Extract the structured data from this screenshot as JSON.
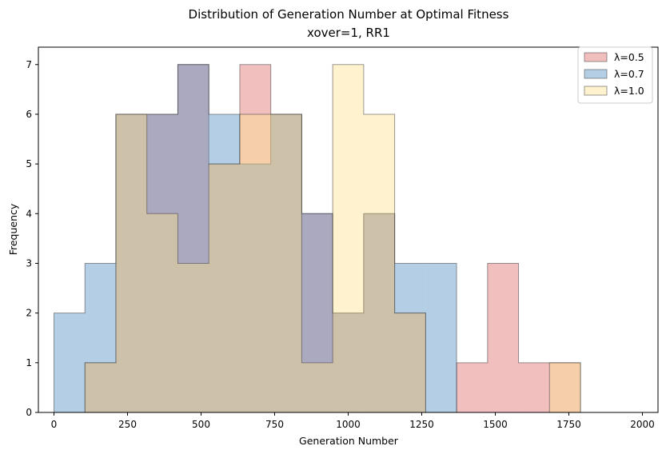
{
  "chart_data": {
    "type": "histogram",
    "title": "Distribution of Generation Number at Optimal Fitness",
    "subtitle": "xover=1, RR1",
    "xlabel": "Generation Number",
    "ylabel": "Frequency",
    "xlim": [
      -53,
      2053
    ],
    "ylim": [
      0,
      7.35
    ],
    "xticks": [
      0,
      250,
      500,
      750,
      1000,
      1250,
      1500,
      1750,
      2000
    ],
    "yticks": [
      0,
      1,
      2,
      3,
      4,
      5,
      6,
      7
    ],
    "bin_edges": [
      0,
      105.26,
      210.53,
      315.79,
      421.05,
      526.32,
      631.58,
      736.84,
      842.11,
      947.37,
      1052.63,
      1157.89,
      1263.16,
      1368.42,
      1473.68,
      1578.95,
      1684.21,
      1789.47,
      1894.74,
      2000
    ],
    "legend_position": "top-right",
    "grid": false,
    "series": [
      {
        "name": "λ=0.5",
        "color": "#e06666",
        "values": [
          0,
          1,
          6,
          6,
          7,
          5,
          7,
          6,
          4,
          2,
          4,
          2,
          0,
          1,
          3,
          1,
          1,
          0,
          0
        ]
      },
      {
        "name": "λ=0.7",
        "color": "#4a8ac2",
        "values": [
          2,
          3,
          6,
          6,
          7,
          6,
          5,
          6,
          4,
          2,
          4,
          3,
          3,
          0,
          0,
          0,
          0,
          0,
          0
        ]
      },
      {
        "name": "λ=1.0",
        "color": "#fde38a",
        "values": [
          0,
          1,
          6,
          4,
          3,
          5,
          6,
          6,
          1,
          7,
          6,
          2,
          0,
          0,
          0,
          0,
          1,
          0,
          0
        ]
      }
    ]
  }
}
